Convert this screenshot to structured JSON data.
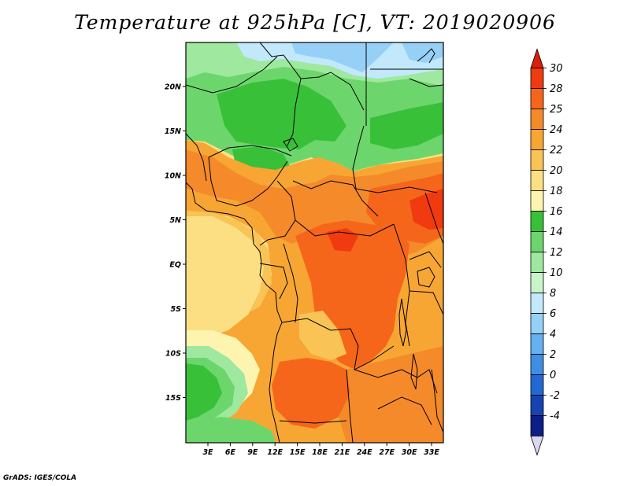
{
  "title": "Temperature at 925hPa [C], VT: 2019020906",
  "credit": "GrADS: IGES/COLA",
  "map": {
    "region": "Central Africa",
    "lon_labels": [
      "3E",
      "6E",
      "9E",
      "12E",
      "15E",
      "18E",
      "21E",
      "24E",
      "27E",
      "30E",
      "33E"
    ],
    "lat_labels": [
      "20N",
      "15N",
      "10N",
      "5N",
      "EQ",
      "5S",
      "10S",
      "15S"
    ]
  },
  "colorbar": {
    "labels": [
      "30",
      "28",
      "25",
      "24",
      "22",
      "20",
      "18",
      "16",
      "14",
      "12",
      "10",
      "8",
      "6",
      "4",
      "2",
      "0",
      "-2",
      "-4"
    ],
    "colors": [
      "#f03a10",
      "#f5661a",
      "#f58a2a",
      "#f7a634",
      "#f9c356",
      "#fbdf82",
      "#fdf4b0",
      "#39c039",
      "#6cd66c",
      "#9fe89f",
      "#c9f4c9",
      "#c2e8fb",
      "#96d0f6",
      "#64b0f0",
      "#3e8ee4",
      "#2468d4",
      "#1444b2",
      "#0c1f86"
    ],
    "top_arrow_color": "#d81f0a",
    "bottom_arrow_color": "#dcd6f4"
  },
  "palette": {
    "hot": "#f03a10",
    "orange_dark": "#f5661a",
    "orange": "#f58a2a",
    "orange_light": "#f7a634",
    "tan": "#f9c356",
    "yellow": "#fbdf82",
    "cream": "#fdf4b0",
    "green_dark": "#39c039",
    "green": "#6cd66c",
    "green_light": "#9fe89f",
    "blue_light": "#c2e8fb",
    "blue": "#96d0f6"
  }
}
